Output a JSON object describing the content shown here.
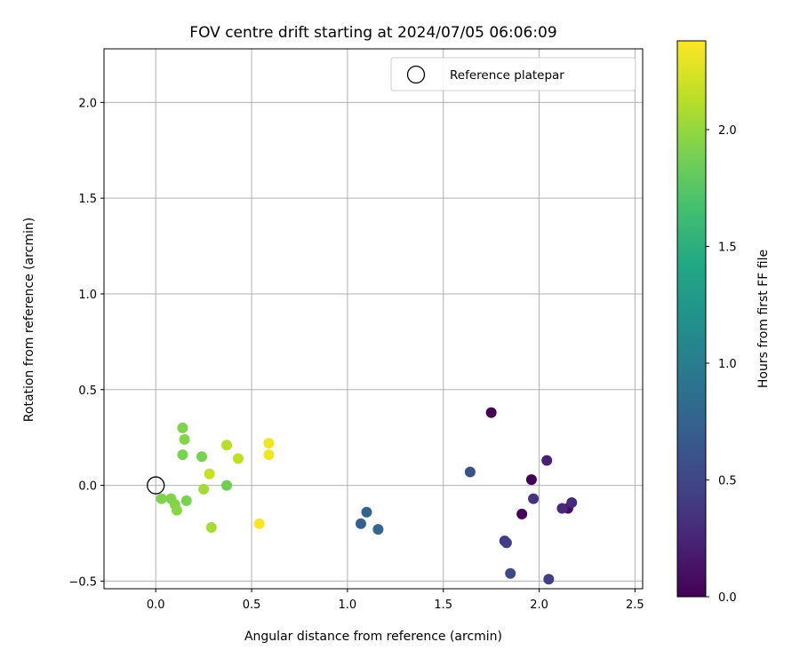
{
  "chart_data": {
    "type": "scatter",
    "title": "FOV centre drift starting at 2024/07/05 06:06:09",
    "xlabel": "Angular distance from reference (arcmin)",
    "ylabel": "Rotation from reference (arcmin)",
    "xlim": [
      -0.27,
      2.54
    ],
    "ylim": [
      -0.54,
      2.28
    ],
    "xticks": [
      0.0,
      0.5,
      1.0,
      1.5,
      2.0,
      2.5
    ],
    "xtick_labels": [
      "0.0",
      "0.5",
      "1.0",
      "1.5",
      "2.0",
      "2.5"
    ],
    "yticks": [
      -0.5,
      0.0,
      0.5,
      1.0,
      1.5,
      2.0
    ],
    "ytick_labels": [
      "−0.5",
      "0.0",
      "0.5",
      "1.0",
      "1.5",
      "2.0"
    ],
    "grid": true,
    "legend": {
      "placement": "top-right",
      "entries": [
        {
          "label": "Reference platepar",
          "marker": "open-circle"
        }
      ]
    },
    "reference_point": {
      "x": 0.0,
      "y": 0.0
    },
    "colorbar": {
      "label": "Hours from first FF file",
      "colormap": "viridis",
      "range": [
        0.0,
        2.38
      ],
      "ticks": [
        0.0,
        0.5,
        1.0,
        1.5,
        2.0
      ],
      "tick_labels": [
        "0.0",
        "0.5",
        "1.0",
        "1.5",
        "2.0"
      ]
    },
    "points": [
      {
        "x": 1.75,
        "y": 0.38,
        "c": 0.0
      },
      {
        "x": 1.96,
        "y": 0.03,
        "c": 0.0
      },
      {
        "x": 1.91,
        "y": -0.15,
        "c": 0.02
      },
      {
        "x": 2.15,
        "y": -0.12,
        "c": 0.1
      },
      {
        "x": 2.04,
        "y": 0.13,
        "c": 0.22
      },
      {
        "x": 2.12,
        "y": -0.12,
        "c": 0.28
      },
      {
        "x": 2.17,
        "y": -0.09,
        "c": 0.3
      },
      {
        "x": 1.97,
        "y": -0.07,
        "c": 0.36
      },
      {
        "x": 1.82,
        "y": -0.29,
        "c": 0.42
      },
      {
        "x": 1.83,
        "y": -0.3,
        "c": 0.44
      },
      {
        "x": 2.05,
        "y": -0.49,
        "c": 0.44
      },
      {
        "x": 1.85,
        "y": -0.46,
        "c": 0.52
      },
      {
        "x": 1.64,
        "y": 0.07,
        "c": 0.58
      },
      {
        "x": 1.07,
        "y": -0.2,
        "c": 0.72
      },
      {
        "x": 1.1,
        "y": -0.14,
        "c": 0.76
      },
      {
        "x": 1.16,
        "y": -0.23,
        "c": 0.78
      },
      {
        "x": 0.14,
        "y": 0.3,
        "c": 1.92
      },
      {
        "x": 0.15,
        "y": 0.24,
        "c": 1.95
      },
      {
        "x": 0.14,
        "y": 0.16,
        "c": 1.9
      },
      {
        "x": 0.24,
        "y": 0.15,
        "c": 1.9
      },
      {
        "x": 0.37,
        "y": 0.0,
        "c": 1.86
      },
      {
        "x": 0.03,
        "y": -0.07,
        "c": 1.92
      },
      {
        "x": 0.08,
        "y": -0.07,
        "c": 1.92
      },
      {
        "x": 0.1,
        "y": -0.1,
        "c": 1.94
      },
      {
        "x": 0.11,
        "y": -0.13,
        "c": 1.96
      },
      {
        "x": 0.16,
        "y": -0.08,
        "c": 1.9
      },
      {
        "x": 0.25,
        "y": -0.02,
        "c": 2.05
      },
      {
        "x": 0.29,
        "y": -0.22,
        "c": 2.06
      },
      {
        "x": 0.28,
        "y": 0.06,
        "c": 2.18
      },
      {
        "x": 0.37,
        "y": 0.21,
        "c": 2.12
      },
      {
        "x": 0.43,
        "y": 0.14,
        "c": 2.15
      },
      {
        "x": 0.59,
        "y": 0.22,
        "c": 2.32
      },
      {
        "x": 0.59,
        "y": 0.16,
        "c": 2.33
      },
      {
        "x": 0.54,
        "y": -0.2,
        "c": 2.36
      }
    ]
  }
}
